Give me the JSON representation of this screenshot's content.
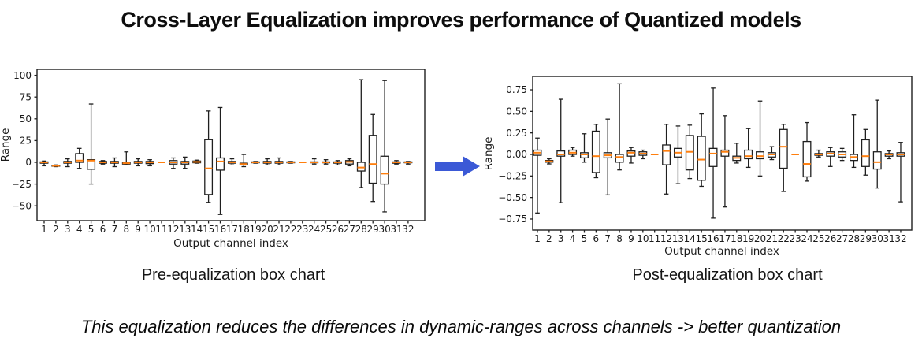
{
  "title": "Cross-Layer Equalization improves performance of Quantized models",
  "note": "This equalization reduces the differences in dynamic-ranges across channels -> better quantization",
  "arrow_icon": {
    "meaning": "pre-to-post transformation",
    "color": "#3b59d6"
  },
  "chart_data": [
    {
      "id": "pre",
      "type": "boxplot",
      "caption": "Pre-equalization box chart",
      "xlabel": "Output channel index",
      "ylabel": "Range",
      "x": [
        1,
        2,
        3,
        4,
        5,
        6,
        7,
        8,
        9,
        10,
        11,
        12,
        13,
        14,
        15,
        16,
        17,
        18,
        19,
        20,
        21,
        22,
        23,
        24,
        25,
        26,
        27,
        28,
        29,
        30,
        31,
        32
      ],
      "yticks": {
        "values": [
          100,
          75,
          50,
          25,
          0,
          -25,
          -50
        ],
        "labels": [
          "100",
          "75",
          "50",
          "25",
          "0",
          "−25",
          "−50"
        ]
      },
      "ylim": [
        -66,
        107
      ],
      "grid": false,
      "legend": "none",
      "box_value_order": [
        "whisker_low",
        "q1",
        "median",
        "q3",
        "whisker_high"
      ],
      "boxes": [
        [
          -4,
          -1,
          0,
          0.5,
          1.5
        ],
        [
          -5,
          -4.5,
          -4,
          -3.5,
          -3
        ],
        [
          -5,
          -1,
          0,
          1,
          4
        ],
        [
          -7,
          0,
          2,
          10,
          16
        ],
        [
          -25,
          -8,
          2,
          3,
          67
        ],
        [
          -2,
          -1,
          0,
          1,
          2
        ],
        [
          -5,
          -1,
          0,
          1,
          5
        ],
        [
          -3,
          -2,
          -1,
          0,
          12
        ],
        [
          -4,
          -1,
          0,
          1,
          4
        ],
        [
          -4,
          -1.5,
          0,
          1,
          3
        ],
        [
          0,
          0,
          0,
          0,
          0
        ],
        [
          -7,
          -2,
          0,
          2,
          5
        ],
        [
          -7,
          -2,
          0,
          1,
          6
        ],
        [
          -1,
          -0.5,
          0.5,
          1.5,
          2.5
        ],
        [
          -46,
          -37,
          -7,
          26,
          59
        ],
        [
          -60,
          -9,
          1,
          5,
          63
        ],
        [
          -3,
          -1,
          0,
          1,
          4
        ],
        [
          -5,
          -3,
          -2,
          -1,
          9
        ],
        [
          -1,
          -0.5,
          0,
          0.5,
          1
        ],
        [
          -3,
          -1,
          0,
          1,
          4
        ],
        [
          -3,
          -1,
          0,
          1,
          5
        ],
        [
          -1,
          -0.5,
          0,
          0.5,
          1
        ],
        [
          0,
          0,
          0,
          0,
          0
        ],
        [
          -2,
          -0.5,
          0,
          0.5,
          4
        ],
        [
          -2,
          -0.5,
          0,
          0.5,
          3
        ],
        [
          -3,
          -1,
          0,
          0.5,
          2
        ],
        [
          -4,
          -2,
          0.5,
          2,
          4
        ],
        [
          -29,
          -10,
          -6,
          0,
          95
        ],
        [
          -45,
          -24,
          -2,
          31,
          55
        ],
        [
          -57,
          -25,
          -13,
          7,
          94
        ],
        [
          -2,
          -1,
          0,
          0.5,
          2
        ],
        [
          -2,
          -0.5,
          0,
          0.5,
          1
        ]
      ],
      "colors": {
        "box_edge": "#1f1f1f",
        "median": "#ff7f0e",
        "box_fill": "#ffffff"
      }
    },
    {
      "id": "post",
      "type": "boxplot",
      "caption": "Post-equalization box chart",
      "xlabel": "Output channel index",
      "ylabel": "Range",
      "x": [
        1,
        2,
        3,
        4,
        5,
        6,
        7,
        8,
        9,
        10,
        11,
        12,
        13,
        14,
        15,
        16,
        17,
        18,
        19,
        20,
        21,
        22,
        23,
        24,
        25,
        26,
        27,
        28,
        29,
        30,
        31,
        32
      ],
      "yticks": {
        "values": [
          0.75,
          0.5,
          0.25,
          0,
          -0.25,
          -0.5,
          -0.75
        ],
        "labels": [
          "0.75",
          "0.50",
          "0.25",
          "0.00",
          "−0.25",
          "−0.50",
          "−0.75"
        ]
      },
      "ylim": [
        -0.88,
        0.9
      ],
      "grid": false,
      "legend": "none",
      "box_value_order": [
        "whisker_low",
        "q1",
        "median",
        "q3",
        "whisker_high"
      ],
      "boxes": [
        [
          -0.68,
          -0.01,
          0.02,
          0.05,
          0.19
        ],
        [
          -0.11,
          -0.09,
          -0.08,
          -0.07,
          -0.05
        ],
        [
          -0.56,
          -0.02,
          0,
          0.04,
          0.64
        ],
        [
          -0.02,
          0,
          0.02,
          0.05,
          0.08
        ],
        [
          -0.09,
          -0.04,
          0,
          0.02,
          0.24
        ],
        [
          -0.27,
          -0.21,
          -0.02,
          0.27,
          0.35
        ],
        [
          -0.47,
          -0.04,
          -0.01,
          0.02,
          0.41
        ],
        [
          -0.18,
          -0.09,
          -0.03,
          0,
          0.82
        ],
        [
          -0.1,
          -0.02,
          0.02,
          0.04,
          0.08
        ],
        [
          -0.05,
          -0.01,
          0.01,
          0.03,
          0.05
        ],
        [
          0,
          0,
          0,
          0,
          0
        ],
        [
          -0.46,
          -0.12,
          0.04,
          0.11,
          0.35
        ],
        [
          -0.34,
          -0.03,
          0.02,
          0.07,
          0.33
        ],
        [
          -0.28,
          -0.18,
          0.03,
          0.22,
          0.34
        ],
        [
          -0.37,
          -0.3,
          -0.06,
          0.21,
          0.47
        ],
        [
          -0.74,
          -0.14,
          0.01,
          0.07,
          0.77
        ],
        [
          -0.61,
          -0.02,
          0.03,
          0.05,
          0.45
        ],
        [
          -0.1,
          -0.07,
          -0.04,
          -0.02,
          0.13
        ],
        [
          -0.15,
          -0.05,
          -0.02,
          0.05,
          0.3
        ],
        [
          -0.25,
          -0.05,
          -0.02,
          0.03,
          0.62
        ],
        [
          -0.06,
          -0.03,
          0,
          0.02,
          0.09
        ],
        [
          -0.43,
          -0.16,
          0.09,
          0.29,
          0.35
        ],
        [
          0,
          0,
          0,
          0,
          0
        ],
        [
          -0.31,
          -0.26,
          -0.11,
          0.15,
          0.37
        ],
        [
          -0.03,
          -0.01,
          0,
          0.01,
          0.05
        ],
        [
          -0.14,
          -0.02,
          0.01,
          0.03,
          0.08
        ],
        [
          -0.07,
          -0.03,
          0,
          0.03,
          0.07
        ],
        [
          -0.15,
          -0.07,
          -0.03,
          0,
          0.46
        ],
        [
          -0.24,
          -0.14,
          -0.02,
          0.17,
          0.29
        ],
        [
          -0.39,
          -0.17,
          -0.09,
          0.03,
          0.63
        ],
        [
          -0.05,
          -0.02,
          0,
          0.01,
          0.04
        ],
        [
          -0.55,
          -0.02,
          0,
          0.02,
          0.14
        ]
      ],
      "colors": {
        "box_edge": "#1f1f1f",
        "median": "#ff7f0e",
        "box_fill": "#ffffff"
      }
    }
  ]
}
